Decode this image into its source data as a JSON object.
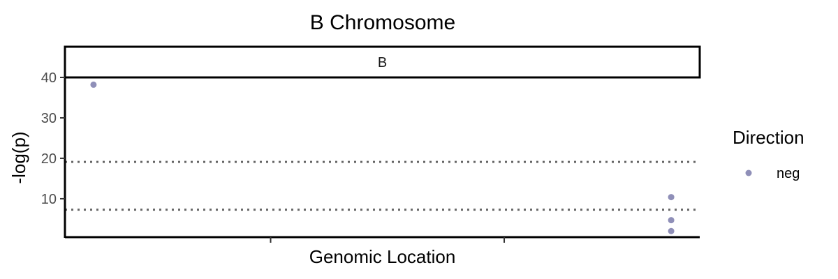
{
  "chart_data": {
    "type": "scatter",
    "title": "B Chromosome",
    "facet_label": "B",
    "xlabel": "Genomic Location",
    "ylabel": "-log(p)",
    "xlim": [
      0,
      100
    ],
    "ylim": [
      0.5,
      40
    ],
    "x_ticks": [
      32.4,
      69.2
    ],
    "y_ticks": [
      10,
      20,
      30,
      40
    ],
    "y_tick_labels": [
      "10",
      "20",
      "30",
      "40"
    ],
    "reference_lines": [
      7.3,
      19.1
    ],
    "grid": false,
    "legend": {
      "title": "Direction",
      "placement": "right",
      "entries": [
        {
          "label": "neg",
          "color": "#8f8fb8"
        }
      ]
    },
    "series": [
      {
        "name": "neg",
        "color": "#8f8fb8",
        "points": [
          {
            "x": 4.5,
            "y": 38.2
          },
          {
            "x": 95.5,
            "y": 10.4
          },
          {
            "x": 95.5,
            "y": 4.7
          },
          {
            "x": 95.5,
            "y": 2.0
          }
        ]
      }
    ]
  }
}
